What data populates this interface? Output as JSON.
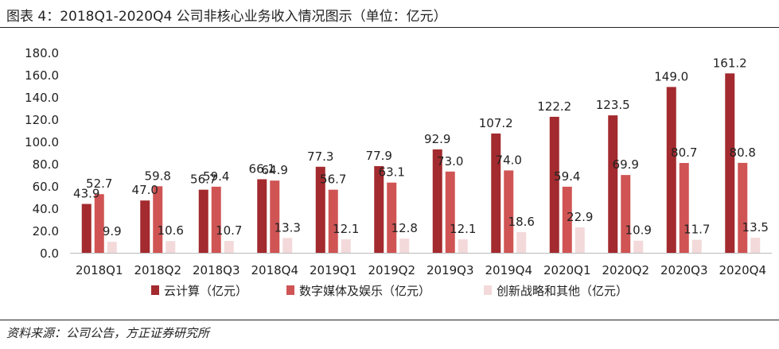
{
  "figure": {
    "title": "图表 4：2018Q1-2020Q4 公司非核心业务收入情况图示（单位：亿元）",
    "source": "资料来源：公司公告，方正证券研究所"
  },
  "chart_data": {
    "type": "bar",
    "title": "",
    "xlabel": "",
    "ylabel": "",
    "ylim": [
      0,
      180
    ],
    "yticks": [
      "0.0",
      "20.0",
      "40.0",
      "60.0",
      "80.0",
      "100.0",
      "120.0",
      "140.0",
      "160.0",
      "180.0"
    ],
    "grid": false,
    "legend_position": "bottom",
    "categories": [
      "2018Q1",
      "2018Q2",
      "2018Q3",
      "2018Q4",
      "2019Q1",
      "2019Q2",
      "2019Q3",
      "2019Q4",
      "2020Q1",
      "2020Q2",
      "2020Q3",
      "2020Q4"
    ],
    "series": [
      {
        "name": "云计算（亿元）",
        "color": "#a32a2e",
        "values": [
          43.9,
          47.0,
          56.7,
          66.1,
          77.3,
          77.9,
          92.9,
          107.2,
          122.2,
          123.5,
          149.0,
          161.2
        ],
        "labels": [
          "43.9",
          "47.0",
          "56.7",
          "66.1",
          "77.3",
          "77.9",
          "92.9",
          "107.2",
          "122.2",
          "123.5",
          "149.0",
          "161.2"
        ]
      },
      {
        "name": "数字媒体及娱乐（亿元）",
        "color": "#d05454",
        "values": [
          52.7,
          59.8,
          59.4,
          64.9,
          56.7,
          63.1,
          73.0,
          74.0,
          59.4,
          69.9,
          80.7,
          80.8
        ],
        "labels": [
          "52.7",
          "59.8",
          "59.4",
          "64.9",
          "56.7",
          "63.1",
          "73.0",
          "74.0",
          "59.4",
          "69.9",
          "80.7",
          "80.8"
        ]
      },
      {
        "name": "创新战略和其他（亿元）",
        "color": "#f3d9da",
        "values": [
          9.9,
          10.6,
          10.7,
          13.3,
          12.1,
          12.8,
          12.1,
          18.6,
          22.9,
          10.9,
          11.7,
          13.5
        ],
        "labels": [
          "9.9",
          "10.6",
          "10.7",
          "13.3",
          "12.1",
          "12.8",
          "12.1",
          "18.6",
          "22.9",
          "10.9",
          "11.7",
          "13.5"
        ]
      }
    ]
  }
}
